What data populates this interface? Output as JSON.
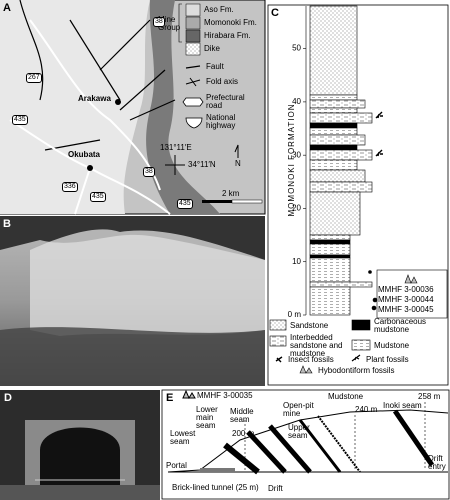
{
  "panel_a": {
    "label": "A",
    "legend": {
      "group": "Mine Group",
      "units": [
        "Aso Fm.",
        "Momonoki Fm.",
        "Hirabara Fm.",
        "Dike"
      ],
      "symbols": [
        "Fault",
        "Fold axis",
        "Prefectural road",
        "National highway"
      ]
    },
    "map_labels": {
      "roads": [
        "38",
        "267",
        "435",
        "336",
        "435",
        "38",
        "435"
      ],
      "places": [
        "Arakawa",
        "Okubata"
      ],
      "longitude": "131°11′E",
      "latitude": "34°11′N",
      "north": "N",
      "scale": "2 km"
    }
  },
  "panel_b": {
    "label": "B"
  },
  "panel_c": {
    "label": "C",
    "formation": "MOMONOKI FORMATION",
    "ylim": [
      0,
      58
    ],
    "yticks": [
      {
        "value": 0,
        "label": "0 m"
      },
      10,
      20,
      30,
      40,
      50
    ],
    "specimens": [
      "MMHF 3-00036",
      "MMHF 3-00044",
      "MMHF 3-00045"
    ],
    "legend": [
      "Sandstone",
      "Carbonaceous mudstone",
      "Interbedded sandstone and mudstone",
      "Mudstone",
      "Insect fossils",
      "Plant fossils",
      "Hybodontiform fossils"
    ]
  },
  "panel_d": {
    "label": "D"
  },
  "panel_e": {
    "label": "E",
    "specimen": "MMHF 3-00035",
    "labels": [
      "Lower main seam",
      "Middle seam",
      "Lowest seam",
      "200 m",
      "Open-pit mine",
      "Upper seam",
      "Mudstone",
      "240 m",
      "Inoki seam",
      "258 m",
      "Drift entry",
      "Portal",
      "Brick-lined tunnel (25 m)",
      "Drift"
    ]
  }
}
